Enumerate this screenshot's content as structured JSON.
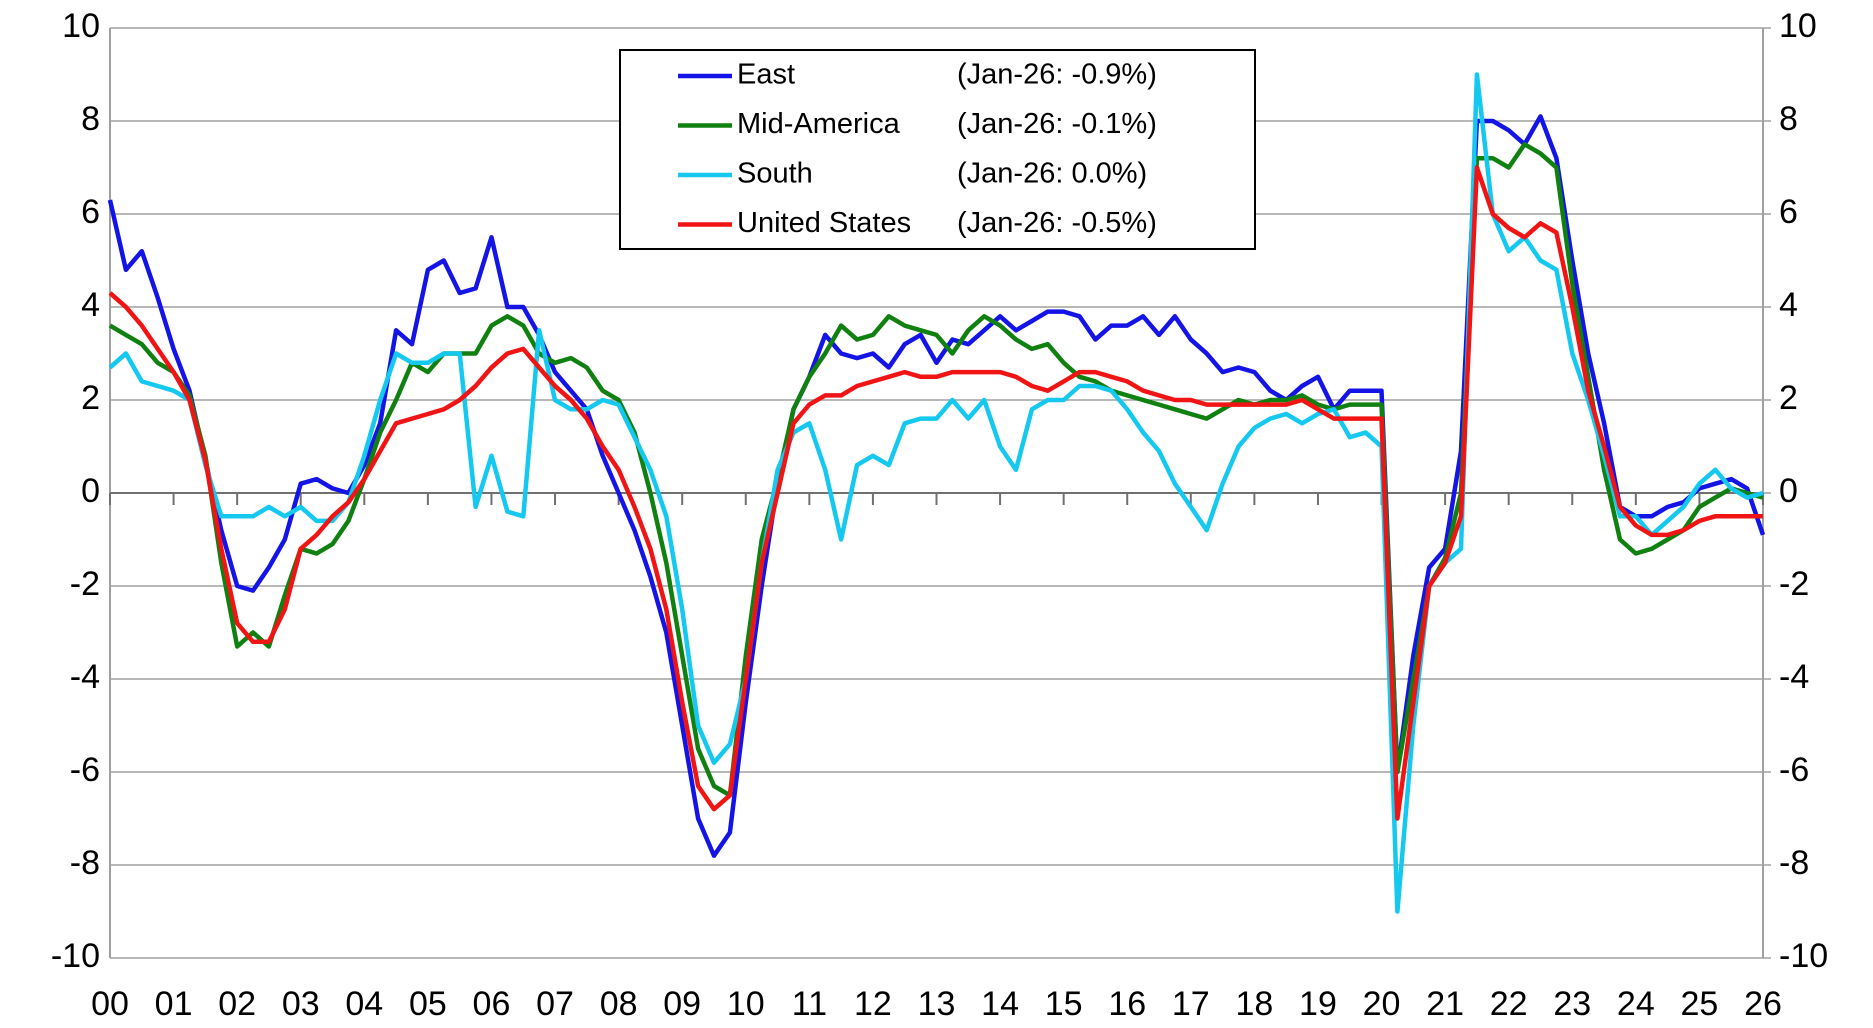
{
  "chart_data": {
    "type": "line",
    "x": [
      0,
      0.25,
      0.5,
      0.75,
      1,
      1.25,
      1.5,
      1.75,
      2,
      2.25,
      2.5,
      2.75,
      3,
      3.25,
      3.5,
      3.75,
      4,
      4.25,
      4.5,
      4.75,
      5,
      5.25,
      5.5,
      5.75,
      6,
      6.25,
      6.5,
      6.75,
      7,
      7.25,
      7.5,
      7.75,
      8,
      8.25,
      8.5,
      8.75,
      9,
      9.25,
      9.5,
      9.75,
      10,
      10.25,
      10.5,
      10.75,
      11,
      11.25,
      11.5,
      11.75,
      12,
      12.25,
      12.5,
      12.75,
      13,
      13.25,
      13.5,
      13.75,
      14,
      14.25,
      14.5,
      14.75,
      15,
      15.25,
      15.5,
      15.75,
      16,
      16.25,
      16.5,
      16.75,
      17,
      17.25,
      17.5,
      17.75,
      18,
      18.25,
      18.5,
      18.75,
      19,
      19.25,
      19.5,
      19.75,
      20,
      20.25,
      20.5,
      20.75,
      21,
      21.25,
      21.5,
      21.75,
      22,
      22.25,
      22.5,
      22.75,
      23,
      23.25,
      23.5,
      23.75,
      24,
      24.25,
      24.5,
      24.75,
      25,
      25.25,
      25.5,
      25.75,
      26
    ],
    "series": [
      {
        "name": "East",
        "legend_note": "(Jan-26: -0.9%)",
        "color": "#1414e6",
        "values": [
          6.3,
          4.8,
          5.2,
          4.2,
          3.1,
          2.2,
          0.7,
          -0.8,
          -2.0,
          -2.1,
          -1.6,
          -1.0,
          0.2,
          0.3,
          0.1,
          0.0,
          0.6,
          1.5,
          3.5,
          3.2,
          4.8,
          5.0,
          4.3,
          4.4,
          5.5,
          4.0,
          4.0,
          3.4,
          2.6,
          2.2,
          1.8,
          0.8,
          0.0,
          -0.8,
          -1.8,
          -3.0,
          -5.0,
          -7.0,
          -7.8,
          -7.3,
          -4.5,
          -2.0,
          0.2,
          1.8,
          2.5,
          3.4,
          3.0,
          2.9,
          3.0,
          2.7,
          3.2,
          3.4,
          2.8,
          3.3,
          3.2,
          3.5,
          3.8,
          3.5,
          3.7,
          3.9,
          3.9,
          3.8,
          3.3,
          3.6,
          3.6,
          3.8,
          3.4,
          3.8,
          3.3,
          3.0,
          2.6,
          2.7,
          2.6,
          2.2,
          2.0,
          2.3,
          2.5,
          1.8,
          2.2,
          2.2,
          2.2,
          -6.0,
          -3.5,
          -1.6,
          -1.2,
          0.9,
          8.0,
          8.0,
          7.8,
          7.5,
          8.1,
          7.2,
          5.0,
          3.0,
          1.5,
          -0.3,
          -0.5,
          -0.5,
          -0.3,
          -0.2,
          0.1,
          0.2,
          0.3,
          0.1,
          -0.9
        ]
      },
      {
        "name": "Mid-America",
        "legend_note": "(Jan-26: -0.1%)",
        "color": "#108010",
        "values": [
          3.6,
          3.4,
          3.2,
          2.8,
          2.6,
          2.1,
          0.8,
          -1.5,
          -3.3,
          -3.0,
          -3.3,
          -2.2,
          -1.2,
          -1.3,
          -1.1,
          -0.6,
          0.3,
          1.3,
          2.0,
          2.8,
          2.6,
          3.0,
          3.0,
          3.0,
          3.6,
          3.8,
          3.6,
          3.0,
          2.8,
          2.9,
          2.7,
          2.2,
          2.0,
          1.3,
          0.0,
          -1.5,
          -3.5,
          -5.5,
          -6.3,
          -6.5,
          -3.5,
          -1.0,
          0.3,
          1.8,
          2.5,
          3.0,
          3.6,
          3.3,
          3.4,
          3.8,
          3.6,
          3.5,
          3.4,
          3.0,
          3.5,
          3.8,
          3.6,
          3.3,
          3.1,
          3.2,
          2.8,
          2.5,
          2.4,
          2.2,
          2.1,
          2.0,
          1.9,
          1.8,
          1.7,
          1.6,
          1.8,
          2.0,
          1.9,
          2.0,
          2.0,
          2.1,
          1.9,
          1.8,
          1.9,
          1.9,
          1.9,
          -6.0,
          -4.0,
          -2.0,
          -1.4,
          0.0,
          7.2,
          7.2,
          7.0,
          7.5,
          7.3,
          7.0,
          4.5,
          2.5,
          0.5,
          -1.0,
          -1.3,
          -1.2,
          -1.0,
          -0.8,
          -0.3,
          -0.1,
          0.1,
          0.0,
          -0.1
        ]
      },
      {
        "name": "South",
        "legend_note": "(Jan-26: 0.0%)",
        "color": "#14c8f0",
        "values": [
          2.7,
          3.0,
          2.4,
          2.3,
          2.2,
          2.0,
          0.6,
          -0.5,
          -0.5,
          -0.5,
          -0.3,
          -0.5,
          -0.3,
          -0.6,
          -0.6,
          -0.2,
          0.8,
          2.0,
          3.0,
          2.8,
          2.8,
          3.0,
          3.0,
          -0.3,
          0.8,
          -0.4,
          -0.5,
          3.5,
          2.0,
          1.8,
          1.8,
          2.0,
          1.9,
          1.2,
          0.5,
          -0.5,
          -2.5,
          -5.0,
          -5.8,
          -5.4,
          -4.0,
          -1.5,
          0.5,
          1.3,
          1.5,
          0.5,
          -1.0,
          0.6,
          0.8,
          0.6,
          1.5,
          1.6,
          1.6,
          2.0,
          1.6,
          2.0,
          1.0,
          0.5,
          1.8,
          2.0,
          2.0,
          2.3,
          2.3,
          2.2,
          1.8,
          1.3,
          0.9,
          0.2,
          -0.3,
          -0.8,
          0.2,
          1.0,
          1.4,
          1.6,
          1.7,
          1.5,
          1.7,
          1.8,
          1.2,
          1.3,
          1.0,
          -9.0,
          -5.0,
          -2.0,
          -1.5,
          -1.2,
          9.0,
          6.0,
          5.2,
          5.5,
          5.0,
          4.8,
          3.0,
          2.0,
          0.8,
          -0.5,
          -0.5,
          -0.9,
          -0.6,
          -0.3,
          0.2,
          0.5,
          0.1,
          -0.1,
          0.0
        ]
      },
      {
        "name": "United States",
        "legend_note": "(Jan-26: -0.5%)",
        "color": "#f01414",
        "values": [
          4.3,
          4.0,
          3.6,
          3.1,
          2.6,
          2.0,
          0.7,
          -1.2,
          -2.8,
          -3.2,
          -3.2,
          -2.5,
          -1.2,
          -0.9,
          -0.5,
          -0.2,
          0.3,
          0.9,
          1.5,
          1.6,
          1.7,
          1.8,
          2.0,
          2.3,
          2.7,
          3.0,
          3.1,
          2.7,
          2.3,
          2.0,
          1.6,
          1.0,
          0.5,
          -0.3,
          -1.2,
          -2.5,
          -4.5,
          -6.3,
          -6.8,
          -6.5,
          -4.0,
          -1.5,
          0.0,
          1.5,
          1.9,
          2.1,
          2.1,
          2.3,
          2.4,
          2.5,
          2.6,
          2.5,
          2.5,
          2.6,
          2.6,
          2.6,
          2.6,
          2.5,
          2.3,
          2.2,
          2.4,
          2.6,
          2.6,
          2.5,
          2.4,
          2.2,
          2.1,
          2.0,
          2.0,
          1.9,
          1.9,
          1.9,
          1.9,
          1.9,
          1.9,
          2.0,
          1.8,
          1.6,
          1.6,
          1.6,
          1.6,
          -7.0,
          -4.5,
          -2.0,
          -1.5,
          -0.5,
          7.0,
          6.0,
          5.7,
          5.5,
          5.8,
          5.6,
          4.0,
          2.2,
          1.0,
          -0.3,
          -0.7,
          -0.9,
          -0.9,
          -0.8,
          -0.6,
          -0.5,
          -0.5,
          -0.5,
          -0.5
        ]
      }
    ],
    "xlim": [
      0,
      26
    ],
    "xticks": [
      {
        "value": 0,
        "label": "00"
      },
      {
        "value": 1,
        "label": "01"
      },
      {
        "value": 2,
        "label": "02"
      },
      {
        "value": 3,
        "label": "03"
      },
      {
        "value": 4,
        "label": "04"
      },
      {
        "value": 5,
        "label": "05"
      },
      {
        "value": 6,
        "label": "06"
      },
      {
        "value": 7,
        "label": "07"
      },
      {
        "value": 8,
        "label": "08"
      },
      {
        "value": 9,
        "label": "09"
      },
      10,
      11,
      12,
      13,
      14,
      15,
      16,
      17,
      18,
      19,
      20,
      21,
      22,
      23,
      24,
      25,
      26
    ],
    "ylim": [
      -10,
      10
    ],
    "yticks": [
      -10,
      -8,
      -6,
      -4,
      -2,
      0,
      2,
      4,
      6,
      8,
      10
    ],
    "y2lim": [
      -10,
      10
    ],
    "y2ticks": [
      -10,
      -8,
      -6,
      -4,
      -2,
      0,
      2,
      4,
      6,
      8,
      10
    ],
    "grid": true,
    "legend": "top"
  }
}
